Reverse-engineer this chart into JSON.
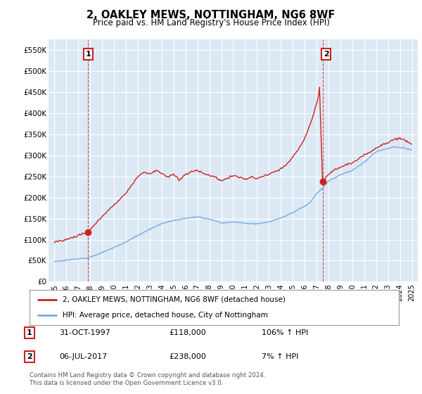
{
  "title": "2, OAKLEY MEWS, NOTTINGHAM, NG6 8WF",
  "subtitle": "Price paid vs. HM Land Registry's House Price Index (HPI)",
  "background_color": "#ffffff",
  "plot_bg_color": "#dce9f5",
  "grid_color": "#ffffff",
  "hpi_color": "#7aaadd",
  "price_color": "#cc2222",
  "sale1_date_x": 1997.83,
  "sale1_price": 118000,
  "sale1_label": "1",
  "sale1_hpi_pct": "106% ↑ HPI",
  "sale1_date_str": "31-OCT-1997",
  "sale1_price_str": "£118,000",
  "sale2_date_x": 2017.5,
  "sale2_price": 238000,
  "sale2_label": "2",
  "sale2_hpi_pct": "7% ↑ HPI",
  "sale2_date_str": "06-JUL-2017",
  "sale2_price_str": "£238,000",
  "legend_line1": "2, OAKLEY MEWS, NOTTINGHAM, NG6 8WF (detached house)",
  "legend_line2": "HPI: Average price, detached house, City of Nottingham",
  "footnote": "Contains HM Land Registry data © Crown copyright and database right 2024.\nThis data is licensed under the Open Government Licence v3.0.",
  "xlim_start": 1994.5,
  "xlim_end": 2025.5,
  "ylim": [
    0,
    575000
  ],
  "yticks": [
    0,
    50000,
    100000,
    150000,
    200000,
    250000,
    300000,
    350000,
    400000,
    450000,
    500000,
    550000
  ],
  "ytick_labels": [
    "£0",
    "£50K",
    "£100K",
    "£150K",
    "£200K",
    "£250K",
    "£300K",
    "£350K",
    "£400K",
    "£450K",
    "£500K",
    "£550K"
  ],
  "xticks": [
    1995,
    1996,
    1997,
    1998,
    1999,
    2000,
    2001,
    2002,
    2003,
    2004,
    2005,
    2006,
    2007,
    2008,
    2009,
    2010,
    2011,
    2012,
    2013,
    2014,
    2015,
    2016,
    2017,
    2018,
    2019,
    2020,
    2021,
    2022,
    2023,
    2024,
    2025
  ]
}
